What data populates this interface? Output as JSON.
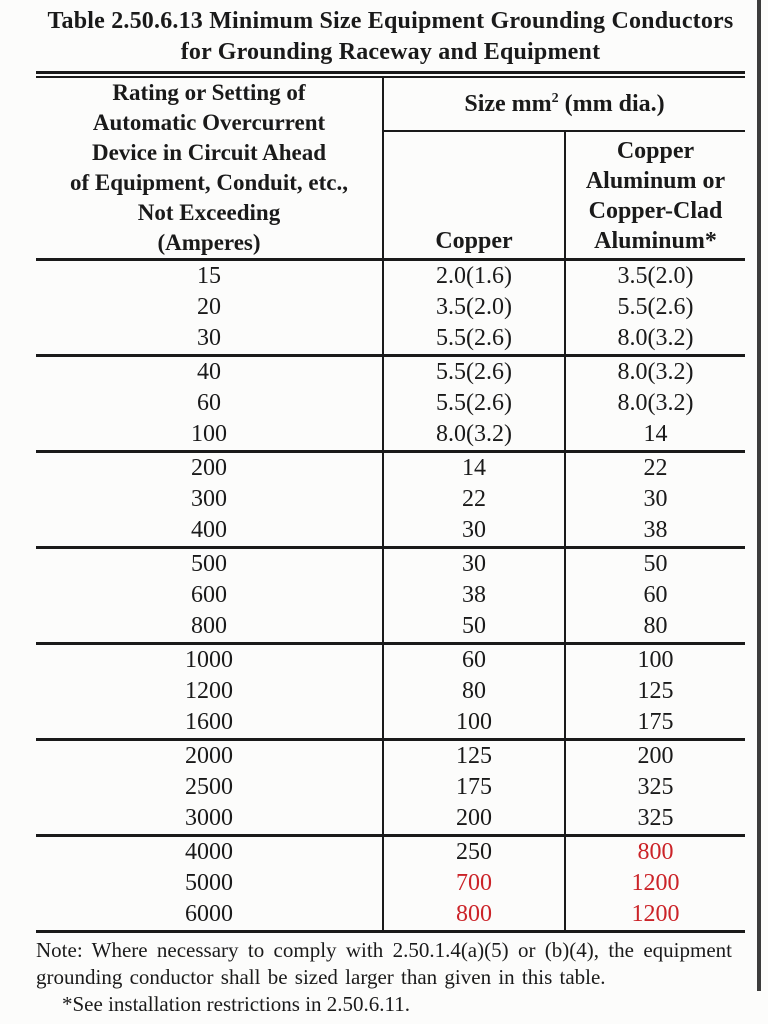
{
  "title": {
    "line1": "Table 2.50.6.13 Minimum Size Equipment Grounding Conductors",
    "line2": "for Grounding Raceway and Equipment"
  },
  "header": {
    "col1_lines": [
      "Rating or Setting of",
      "Automatic Overcurrent",
      "Device in Circuit Ahead",
      "of Equipment, Conduit, etc.,",
      "Not Exceeding",
      "(Amperes)"
    ],
    "size_label_prefix": "Size mm",
    "size_label_sup": "2",
    "size_label_suffix": " (mm dia.)",
    "copper_label": "Copper",
    "col3_lines": [
      "Copper",
      "Aluminum or",
      "Copper-Clad",
      "Aluminum*"
    ]
  },
  "table": {
    "rows": [
      {
        "amperes": "15",
        "copper": "2.0(1.6)",
        "aluminum": "3.5(2.0)"
      },
      {
        "amperes": "20",
        "copper": "3.5(2.0)",
        "aluminum": "5.5(2.6)"
      },
      {
        "amperes": "30",
        "copper": "5.5(2.6)",
        "aluminum": "8.0(3.2)"
      },
      {
        "amperes": "40",
        "copper": "5.5(2.6)",
        "aluminum": "8.0(3.2)",
        "group_start": true
      },
      {
        "amperes": "60",
        "copper": "5.5(2.6)",
        "aluminum": "8.0(3.2)"
      },
      {
        "amperes": "100",
        "copper": "8.0(3.2)",
        "aluminum": "14"
      },
      {
        "amperes": "200",
        "copper": "14",
        "aluminum": "22",
        "group_start": true
      },
      {
        "amperes": "300",
        "copper": "22",
        "aluminum": "30"
      },
      {
        "amperes": "400",
        "copper": "30",
        "aluminum": "38"
      },
      {
        "amperes": "500",
        "copper": "30",
        "aluminum": "50",
        "group_start": true
      },
      {
        "amperes": "600",
        "copper": "38",
        "aluminum": "60"
      },
      {
        "amperes": "800",
        "copper": "50",
        "aluminum": "80"
      },
      {
        "amperes": "1000",
        "copper": "60",
        "aluminum": "100",
        "group_start": true
      },
      {
        "amperes": "1200",
        "copper": "80",
        "aluminum": "125"
      },
      {
        "amperes": "1600",
        "copper": "100",
        "aluminum": "175"
      },
      {
        "amperes": "2000",
        "copper": "125",
        "aluminum": "200",
        "group_start": true
      },
      {
        "amperes": "2500",
        "copper": "175",
        "aluminum": "325"
      },
      {
        "amperes": "3000",
        "copper": "200",
        "aluminum": "325"
      },
      {
        "amperes": "4000",
        "copper": "250",
        "aluminum": "800",
        "group_start": true,
        "aluminum_red": true
      },
      {
        "amperes": "5000",
        "copper": "700",
        "aluminum": "1200",
        "copper_red": true,
        "aluminum_red": true
      },
      {
        "amperes": "6000",
        "copper": "800",
        "aluminum": "1200",
        "copper_red": true,
        "aluminum_red": true
      }
    ]
  },
  "notes": {
    "main": "Note: Where necessary to comply with 2.50.1.4(a)(5) or (b)(4), the equipment grounding conductor shall be sized larger than given in this table.",
    "footnote": "*See installation restrictions in 2.50.6.11."
  },
  "colors": {
    "text": "#1a1a1a",
    "red_highlight": "#cb2328",
    "change_bar": "#3c3c3c"
  }
}
